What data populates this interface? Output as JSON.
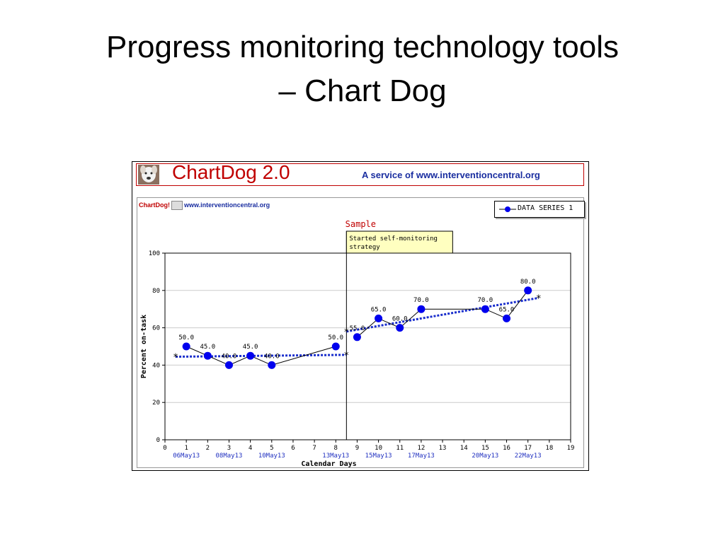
{
  "slide": {
    "title_line1": "Progress monitoring technology tools",
    "title_line2": "– Chart Dog"
  },
  "banner": {
    "title": "ChartDog 2.0",
    "service": "A service of www.interventioncentral.org",
    "logo_icon": "dog-icon"
  },
  "mini_brand": {
    "name": "ChartDog!",
    "url": "www.interventioncentral.org"
  },
  "colors": {
    "brand_red": "#c00000",
    "service_blue": "#1a2ea0",
    "series": "#0000ee",
    "trend": "#1a2ecc",
    "annotation_bg": "#ffffc0"
  },
  "chart_data": {
    "type": "line",
    "title": "Sample",
    "xlabel": "Calendar Days",
    "ylabel": "Percent on-task",
    "xlim": [
      0,
      19
    ],
    "ylim": [
      0,
      100
    ],
    "xticks": [
      0,
      1,
      2,
      3,
      4,
      5,
      6,
      7,
      8,
      9,
      10,
      11,
      12,
      13,
      14,
      15,
      16,
      17,
      18,
      19
    ],
    "yticks": [
      0,
      20,
      40,
      60,
      80,
      100
    ],
    "date_labels": [
      {
        "x": 1,
        "label": "06May13"
      },
      {
        "x": 3,
        "label": "08May13"
      },
      {
        "x": 5,
        "label": "10May13"
      },
      {
        "x": 8,
        "label": "13May13"
      },
      {
        "x": 10,
        "label": "15May13"
      },
      {
        "x": 12,
        "label": "17May13"
      },
      {
        "x": 15,
        "label": "20May13"
      },
      {
        "x": 17,
        "label": "22May13"
      }
    ],
    "grid": true,
    "legend_position": "top-right",
    "series": [
      {
        "name": "DATA SERIES 1",
        "x": [
          1,
          2,
          3,
          4,
          5,
          8,
          9,
          10,
          11,
          12,
          15,
          16,
          17
        ],
        "y": [
          50,
          45,
          40,
          45,
          40,
          50,
          55,
          65,
          60,
          70,
          70,
          65,
          80
        ],
        "labels": [
          "50.0",
          "45.0",
          "40.0",
          "45.0",
          "40.0",
          "50.0",
          "55.0",
          "65.0",
          "60.0",
          "70.0",
          "70.0",
          "65.0",
          "80.0"
        ]
      }
    ],
    "trend_lines": [
      {
        "x": [
          0.5,
          8.5
        ],
        "y": [
          44.5,
          45.5
        ]
      },
      {
        "x": [
          8.5,
          17.5
        ],
        "y": [
          58,
          76
        ]
      }
    ],
    "phase_change": {
      "x": 8.5,
      "annotation": "Started self-monitoring strategy"
    }
  }
}
